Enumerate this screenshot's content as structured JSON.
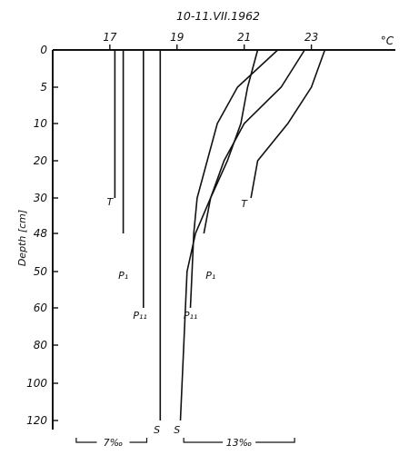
{
  "chart_data": {
    "type": "line",
    "title": "10-11.VII.1962",
    "xunit": "°C",
    "ylabel": "Depth [cm]",
    "xticks": [
      "17",
      "19",
      "21",
      "23"
    ],
    "xtick_values": [
      17,
      19,
      21,
      23
    ],
    "xlim": [
      15.3,
      25.5
    ],
    "yticks": [
      "0",
      "5",
      "10",
      "20",
      "30",
      "48",
      "50",
      "60",
      "80",
      "100",
      "120"
    ],
    "depth_levels": [
      0,
      5,
      10,
      20,
      30,
      48,
      50,
      60,
      80,
      100,
      120
    ],
    "series": [
      {
        "name": "T",
        "group": "7‰",
        "points": [
          [
            17.15,
            0
          ],
          [
            17.15,
            30
          ]
        ],
        "label_at": [
          17.0,
          30
        ]
      },
      {
        "name": "P₁",
        "group": "7‰",
        "points": [
          [
            17.4,
            0
          ],
          [
            17.4,
            48
          ]
        ],
        "label_at": [
          17.4,
          50
        ]
      },
      {
        "name": "P₁₁",
        "group": "7‰",
        "points": [
          [
            18.0,
            0
          ],
          [
            18.0,
            60
          ]
        ],
        "label_at": [
          17.9,
          62
        ]
      },
      {
        "name": "S",
        "group": "7‰",
        "points": [
          [
            18.5,
            0
          ],
          [
            18.5,
            120
          ]
        ],
        "label_at": [
          18.4,
          123
        ]
      },
      {
        "name": "T",
        "group": "13‰",
        "points": [
          [
            23.4,
            0
          ],
          [
            23.0,
            5
          ],
          [
            22.3,
            10
          ],
          [
            21.4,
            20
          ],
          [
            21.2,
            30
          ]
        ],
        "label_at": [
          21.0,
          31
        ]
      },
      {
        "name": "P₁",
        "group": "13‰",
        "points": [
          [
            22.8,
            0
          ],
          [
            22.1,
            5
          ],
          [
            21.0,
            10
          ],
          [
            20.4,
            20
          ],
          [
            20.0,
            30
          ],
          [
            19.8,
            48
          ]
        ],
        "label_at": [
          20.0,
          50
        ]
      },
      {
        "name": "P₁₁",
        "group": "13‰",
        "points": [
          [
            22.0,
            0
          ],
          [
            20.8,
            5
          ],
          [
            20.2,
            10
          ],
          [
            19.9,
            20
          ],
          [
            19.6,
            30
          ],
          [
            19.5,
            48
          ],
          [
            19.4,
            60
          ]
        ],
        "label_at": [
          19.4,
          62
        ]
      },
      {
        "name": "S",
        "group": "13‰",
        "points": [
          [
            21.4,
            0
          ],
          [
            21.1,
            5
          ],
          [
            20.9,
            10
          ],
          [
            20.5,
            20
          ],
          [
            20.0,
            30
          ],
          [
            19.55,
            48
          ],
          [
            19.3,
            50
          ],
          [
            19.1,
            120
          ]
        ],
        "label_at": [
          19.0,
          123
        ]
      }
    ],
    "groups": [
      {
        "name": "7‰"
      },
      {
        "name": "13‰"
      }
    ],
    "grid": false,
    "legend": "none"
  }
}
